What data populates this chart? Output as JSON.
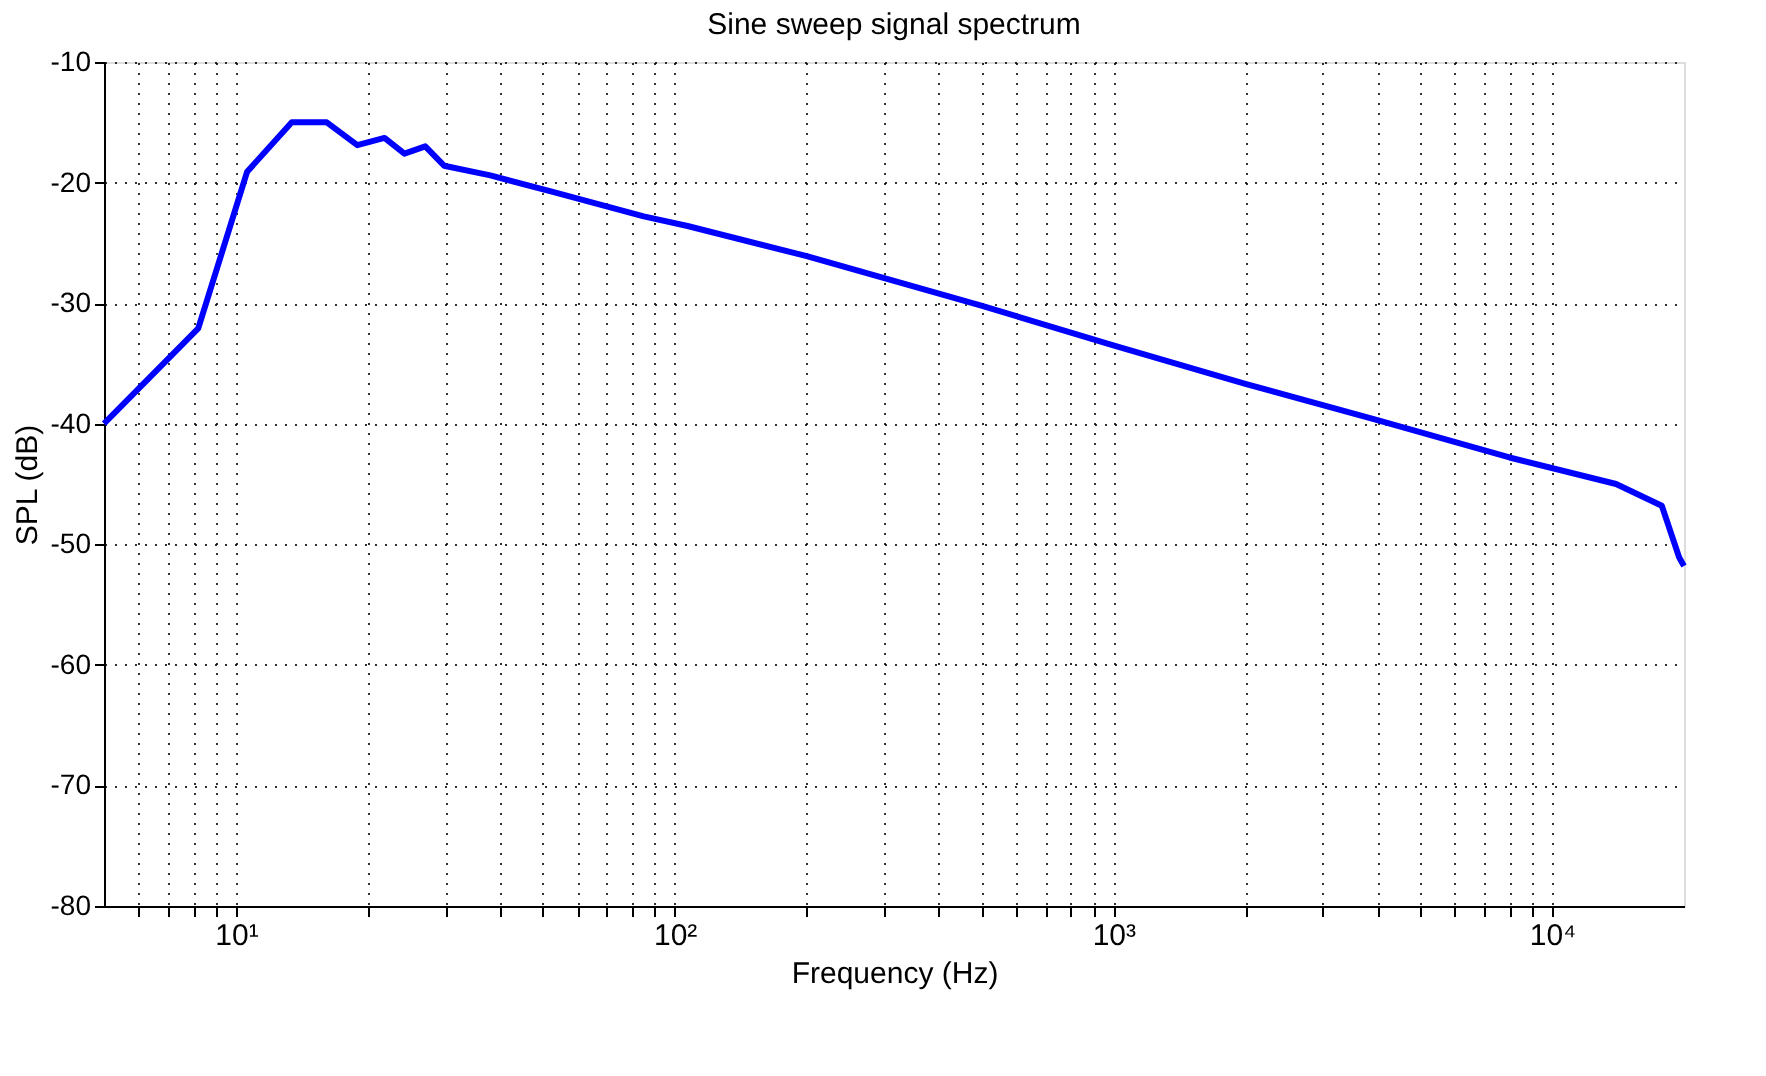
{
  "chart_data": {
    "type": "line",
    "title": "Sine sweep signal spectrum",
    "xlabel": "Frequency (Hz)",
    "ylabel": "SPL (dB)",
    "log": "x",
    "grid": true,
    "line_style": "solid",
    "marker": "none",
    "xlim": [
      5,
      20000
    ],
    "ylim": [
      -80,
      -10
    ],
    "xticks": [
      {
        "value": 6,
        "label": null
      },
      {
        "value": 7,
        "label": null
      },
      {
        "value": 8,
        "label": null
      },
      {
        "value": 9,
        "label": null
      },
      {
        "value": 10,
        "label": "10¹"
      },
      {
        "value": 20,
        "label": null
      },
      {
        "value": 30,
        "label": null
      },
      {
        "value": 40,
        "label": null
      },
      {
        "value": 50,
        "label": null
      },
      {
        "value": 60,
        "label": null
      },
      {
        "value": 70,
        "label": null
      },
      {
        "value": 80,
        "label": null
      },
      {
        "value": 90,
        "label": null
      },
      {
        "value": 100,
        "label": "10²"
      },
      {
        "value": 200,
        "label": null
      },
      {
        "value": 300,
        "label": null
      },
      {
        "value": 400,
        "label": null
      },
      {
        "value": 500,
        "label": null
      },
      {
        "value": 600,
        "label": null
      },
      {
        "value": 700,
        "label": null
      },
      {
        "value": 800,
        "label": null
      },
      {
        "value": 900,
        "label": null
      },
      {
        "value": 1000,
        "label": "10³"
      },
      {
        "value": 2000,
        "label": null
      },
      {
        "value": 3000,
        "label": null
      },
      {
        "value": 4000,
        "label": null
      },
      {
        "value": 5000,
        "label": null
      },
      {
        "value": 6000,
        "label": null
      },
      {
        "value": 7000,
        "label": null
      },
      {
        "value": 8000,
        "label": null
      },
      {
        "value": 9000,
        "label": null
      },
      {
        "value": 10000,
        "label": "10⁴"
      }
    ],
    "yticks": [
      -80,
      -70,
      -60,
      -50,
      -40,
      -30,
      -20,
      -10
    ],
    "series": [
      {
        "color": "#0000ff",
        "x": [
          5,
          8.2,
          10.6,
          13.4,
          16.1,
          18.9,
          21.8,
          24.2,
          27,
          29.8,
          38,
          53,
          85,
          107,
          200,
          500,
          1000,
          2000,
          4000,
          8000,
          14000,
          17800,
          19500,
          20000
        ],
        "values": [
          -40,
          -32.1,
          -19.1,
          -15,
          -15,
          -16.9,
          -16.3,
          -17.6,
          -17,
          -18.6,
          -19.4,
          -20.8,
          -22.8,
          -23.6,
          -26.1,
          -30.2,
          -33.5,
          -36.7,
          -39.7,
          -42.8,
          -45,
          -46.8,
          -51.1,
          -51.8
        ]
      }
    ]
  }
}
